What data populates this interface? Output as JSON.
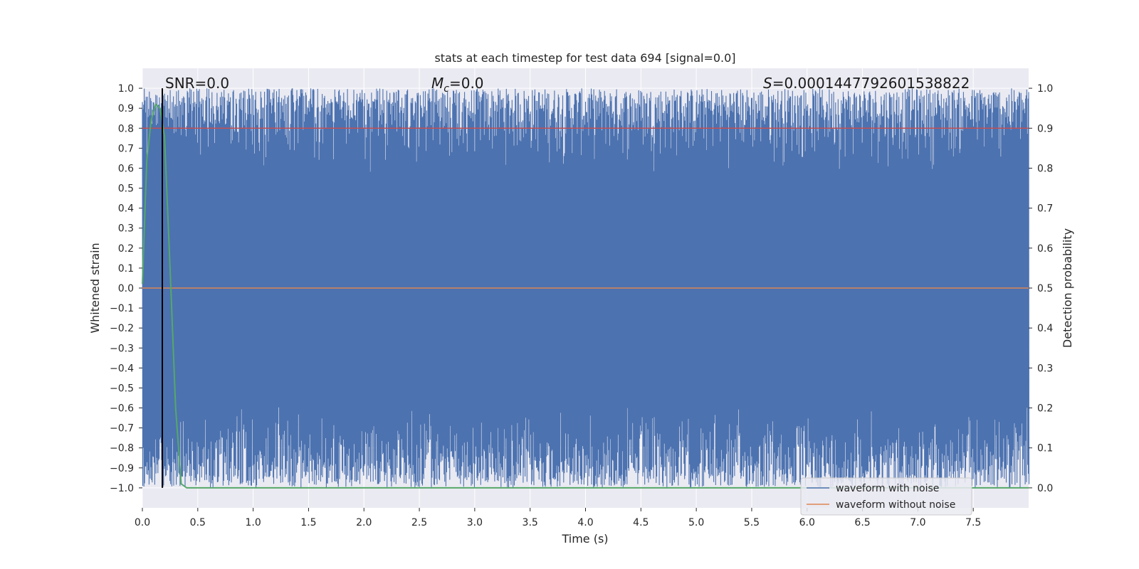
{
  "chart_data": {
    "type": "line",
    "title": "stats at each timestep for test data 694 [signal=0.0]",
    "xlabel": "Time (s)",
    "ylabel_left": "Whitened strain",
    "ylabel_right": "Detection probability",
    "xlim": [
      0.0,
      8.0
    ],
    "ylim_left": [
      -1.1,
      1.1
    ],
    "ylim_right": [
      -0.05,
      1.05
    ],
    "x_ticks": [
      "0.0",
      "0.5",
      "1.0",
      "1.5",
      "2.0",
      "2.5",
      "3.0",
      "3.5",
      "4.0",
      "4.5",
      "5.0",
      "5.5",
      "6.0",
      "6.5",
      "7.0",
      "7.5"
    ],
    "y_ticks_left": [
      "1.0",
      "0.9",
      "0.8",
      "0.7",
      "0.6",
      "0.5",
      "0.4",
      "0.3",
      "0.2",
      "0.1",
      "0.0",
      "−0.1",
      "−0.2",
      "−0.3",
      "−0.4",
      "−0.5",
      "−0.6",
      "−0.7",
      "−0.8",
      "−0.9",
      "−1.0"
    ],
    "y_ticks_right": [
      "1.0",
      "0.9",
      "0.8",
      "0.7",
      "0.6",
      "0.5",
      "0.4",
      "0.3",
      "0.2",
      "0.1",
      "0.0"
    ],
    "annotations": {
      "snr": "SNR=0.0",
      "mc_symbol": "M",
      "mc_sub": "c",
      "mc_value": "=0.0",
      "s_symbol": "S",
      "s_value": "=0.0001447792601538822"
    },
    "series": [
      {
        "name": "waveform with noise",
        "color": "#4c72b0",
        "description_values": "dense noise spanning approx -1.0 to 1.0 over 0–8 s"
      },
      {
        "name": "waveform without noise",
        "color": "#dd8452",
        "x": [
          0.0,
          8.0
        ],
        "y": [
          0.0,
          0.0
        ]
      },
      {
        "name": "",
        "color": "#55a868",
        "axis": "right",
        "x": [
          0.0,
          0.04,
          0.08,
          0.12,
          0.16,
          0.2,
          0.25,
          0.3,
          0.35,
          0.4,
          8.0
        ],
        "y": [
          0.51,
          0.82,
          0.92,
          0.96,
          0.95,
          0.88,
          0.55,
          0.2,
          0.01,
          0.0,
          0.0
        ]
      }
    ],
    "threshold": {
      "axis": "right",
      "value": 0.9,
      "color": "#c44e52"
    },
    "marker_line": {
      "x": 0.18,
      "color": "#000000"
    },
    "legend_location": "lower right",
    "grid": true,
    "background": "#eaeaf2"
  }
}
